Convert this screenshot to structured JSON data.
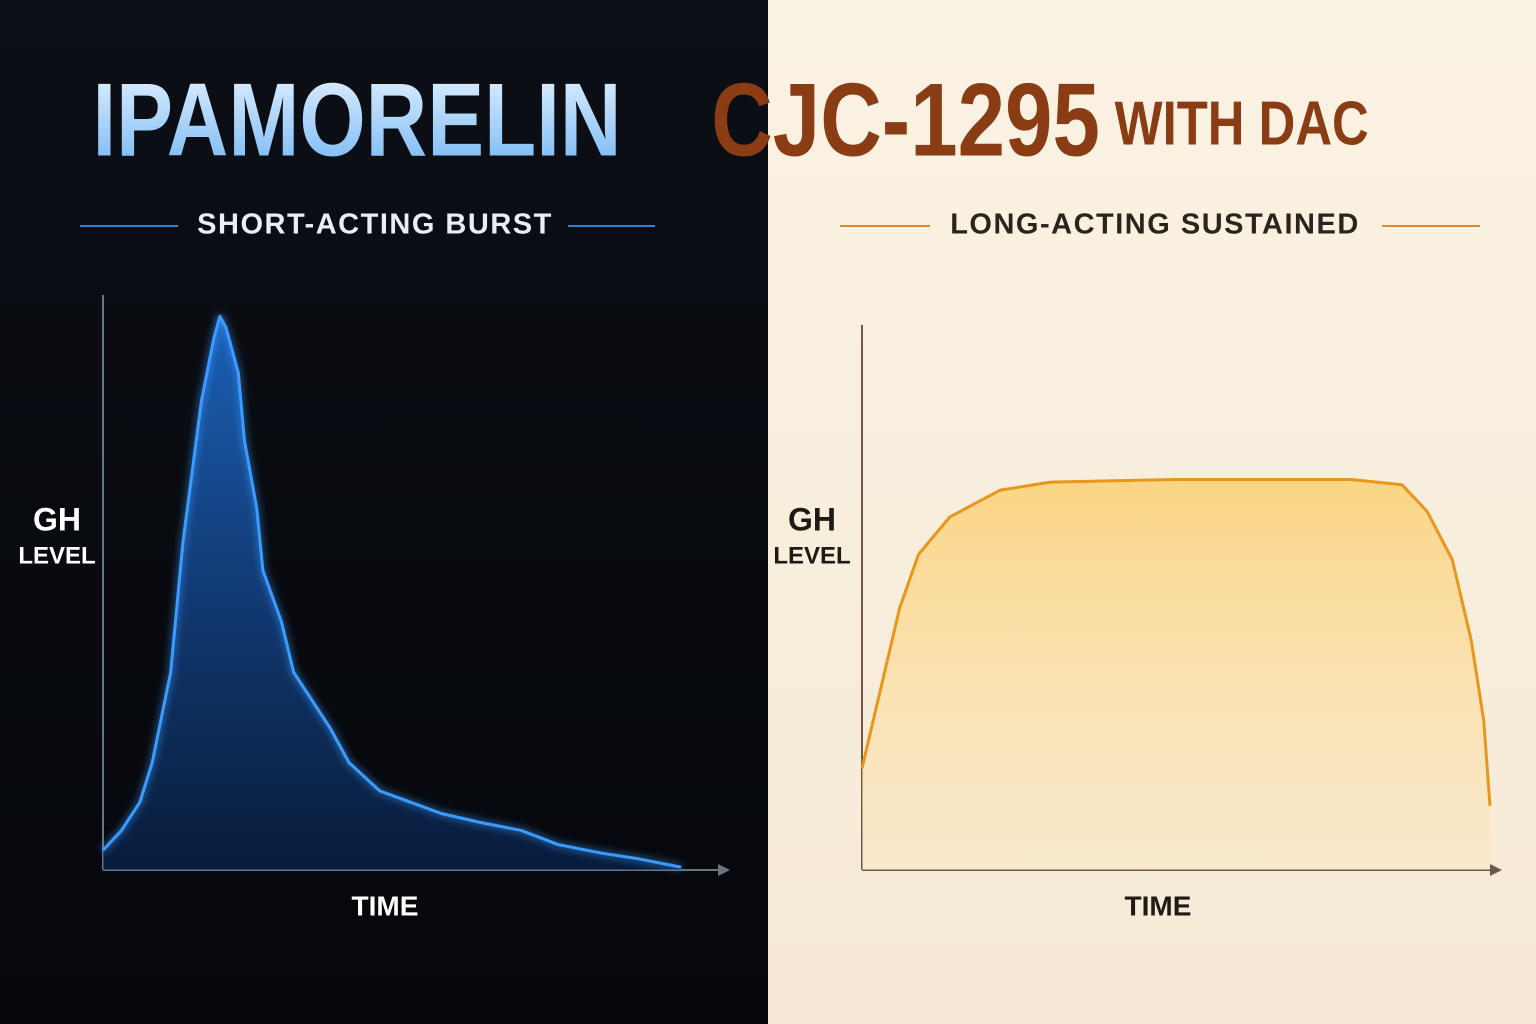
{
  "chart_data": [
    {
      "type": "area",
      "title": "IPAMORELIN",
      "subtitle": "SHORT-ACTING BURST",
      "ylabel": "GH",
      "ylabel_sub": "LEVEL",
      "xlabel": "TIME",
      "color": "#3a9bff",
      "xlim": [
        0,
        100
      ],
      "ylim": [
        0,
        100
      ],
      "x": [
        0,
        3,
        6,
        8,
        11,
        13,
        16,
        18,
        19,
        20,
        22,
        23,
        25,
        26,
        29,
        31,
        34,
        37,
        40,
        45,
        50,
        55,
        61,
        68,
        74,
        81,
        87,
        94
      ],
      "values": [
        3.5,
        7,
        12,
        19,
        35,
        58,
        83,
        94,
        98,
        96,
        88,
        76,
        64,
        53,
        44,
        35,
        30,
        25,
        19,
        14,
        12,
        10,
        8.5,
        7,
        4.5,
        3,
        2,
        0.5
      ]
    },
    {
      "type": "area",
      "title": "CJC-1295",
      "title_small": "WITH DAC",
      "subtitle": "LONG-ACTING SUSTAINED",
      "ylabel": "GH",
      "ylabel_sub": "LEVEL",
      "xlabel": "TIME",
      "color": "#e8961e",
      "xlim": [
        0,
        100
      ],
      "ylim": [
        0,
        100
      ],
      "x": [
        0,
        3,
        6,
        9,
        14,
        22,
        30,
        50,
        78,
        86,
        90,
        94,
        97,
        99,
        100
      ],
      "values": [
        19,
        34,
        49,
        59,
        66,
        71,
        72.5,
        73,
        73,
        72,
        67,
        58,
        43,
        28,
        12
      ]
    }
  ]
}
